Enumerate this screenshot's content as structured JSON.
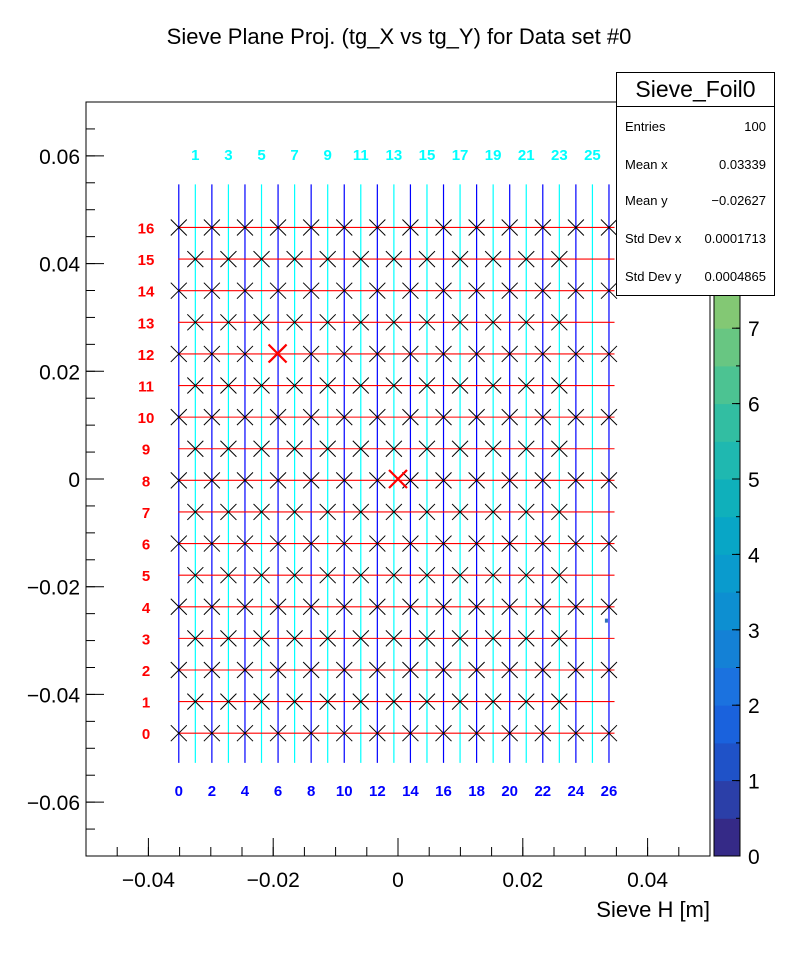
{
  "title": "Sieve Plane Proj. (tg_X vs tg_Y) for Data set #0",
  "stats": {
    "name": "Sieve_Foil0",
    "rows": [
      {
        "label": "Entries",
        "value": "100"
      },
      {
        "label": "Mean x",
        "value": "0.03339"
      },
      {
        "label": "Mean y",
        "value": "−0.02627"
      },
      {
        "label": "Std Dev x",
        "value": "0.0001713"
      },
      {
        "label": "Std Dev y",
        "value": "0.0004865"
      }
    ]
  },
  "chart_data": {
    "type": "heatmap",
    "title": "Sieve Plane Proj. (tg_X vs tg_Y) for Data set #0",
    "xlabel": "Sieve H [m]",
    "ylabel": "",
    "xlim": [
      -0.05,
      0.05
    ],
    "ylim": [
      -0.07,
      0.07
    ],
    "x_tick_labels": [
      {
        "value": -0.04,
        "label": "−0.04"
      },
      {
        "value": -0.02,
        "label": "−0.02"
      },
      {
        "value": 0,
        "label": "0"
      },
      {
        "value": 0.02,
        "label": "0.02"
      },
      {
        "value": 0.04,
        "label": "0.04"
      }
    ],
    "y_tick_labels": [
      {
        "value": 0.06,
        "label": "0.06"
      },
      {
        "value": 0.04,
        "label": "0.04"
      },
      {
        "value": 0.02,
        "label": "0.02"
      },
      {
        "value": 0,
        "label": "0"
      },
      {
        "value": -0.02,
        "label": "−0.02"
      },
      {
        "value": -0.04,
        "label": "−0.04"
      },
      {
        "value": -0.06,
        "label": "−0.06"
      }
    ],
    "columns": {
      "first_x": -0.03513,
      "last_x": 0.03381,
      "odd_color": "#00ffff",
      "even_color": "#0000ff",
      "top_labels": [
        "1",
        "3",
        "5",
        "7",
        "9",
        "11",
        "13",
        "15",
        "17",
        "19",
        "21",
        "23",
        "25"
      ],
      "bottom_labels": [
        "0",
        "2",
        "4",
        "6",
        "8",
        "10",
        "12",
        "14",
        "16",
        "18",
        "20",
        "22",
        "24",
        "26"
      ]
    },
    "rows": {
      "first_y": -0.0472,
      "last_y": 0.0467,
      "color": "#ff0000",
      "labels": [
        "0",
        "1",
        "2",
        "3",
        "4",
        "5",
        "6",
        "7",
        "8",
        "9",
        "10",
        "11",
        "12",
        "13",
        "14",
        "15",
        "16"
      ]
    },
    "grid_x_range": [
      -0.0352,
      0.0347
    ],
    "grid_y_top": 0.0547,
    "hole_marker_color": "#000000",
    "reference_markers": [
      {
        "x": -0.0193,
        "y": 0.0233,
        "color": "#ff0000"
      },
      {
        "x": 0.0,
        "y": 0.0,
        "color": "#ff0000"
      }
    ],
    "data_points": [
      {
        "x": 0.0334,
        "y": -0.0263,
        "color": "#2f6fb8"
      }
    ],
    "colorbar": {
      "range": [
        0,
        10
      ],
      "tick_labels": [
        "0",
        "1",
        "2",
        "3",
        "4",
        "5",
        "6",
        "7"
      ],
      "top_label_partial": "0",
      "colors": [
        "#352a87",
        "#2b3fa8",
        "#1f52c8",
        "#1a62dd",
        "#1b72df",
        "#1481d6",
        "#0d8fd1",
        "#0a9bcd",
        "#08a6c6",
        "#0fb0bb",
        "#1fb8b0",
        "#32bea2",
        "#4cc392",
        "#68c682",
        "#83c874",
        "#9ec869",
        "#b7c45f",
        "#cdbf57",
        "#e0b953"
      ]
    }
  }
}
